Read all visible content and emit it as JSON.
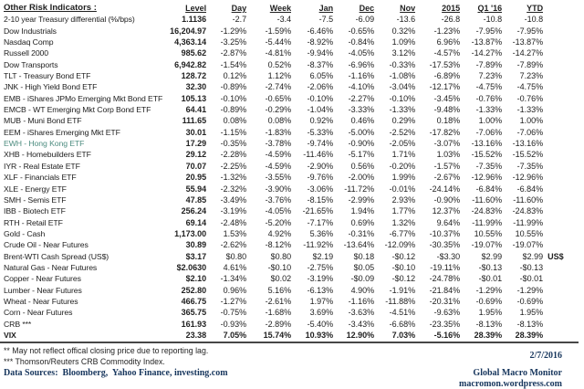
{
  "table": {
    "title": "Other Risk Indicators :",
    "columns": [
      "Level",
      "Day",
      "Week",
      "Jan",
      "Dec",
      "Nov",
      "2015",
      "Q1 '16",
      "YTD"
    ],
    "rows": [
      {
        "label": "2-10 year Treasury differential (%/bps)",
        "values": [
          "1.1136",
          "-2.7",
          "-3.4",
          "-7.5",
          "-6.09",
          "-13.6",
          "-26.8",
          "-10.8",
          "-10.8"
        ]
      },
      {
        "label": "Dow Industrials",
        "values": [
          "16,204.97",
          "-1.29%",
          "-1.59%",
          "-6.46%",
          "-0.65%",
          "0.32%",
          "-1.23%",
          "-7.95%",
          "-7.95%"
        ]
      },
      {
        "label": "Nasdaq Comp",
        "values": [
          "4,363.14",
          "-3.25%",
          "-5.44%",
          "-8.92%",
          "-0.84%",
          "1.09%",
          "6.96%",
          "-13.87%",
          "-13.87%"
        ]
      },
      {
        "label": "Russell 2000",
        "values": [
          "985.62",
          "-2.87%",
          "-4.81%",
          "-9.94%",
          "-4.05%",
          "3.12%",
          "-4.57%",
          "-14.27%",
          "-14.27%"
        ]
      },
      {
        "label": "Dow Transports",
        "values": [
          "6,942.82",
          "-1.54%",
          "0.52%",
          "-8.37%",
          "-6.96%",
          "-0.33%",
          "-17.53%",
          "-7.89%",
          "-7.89%"
        ]
      },
      {
        "label": "TLT - Treasury Bond ETF",
        "values": [
          "128.72",
          "0.12%",
          "1.12%",
          "6.05%",
          "-1.16%",
          "-1.08%",
          "-6.89%",
          "7.23%",
          "7.23%"
        ]
      },
      {
        "label": "JNK - High Yield Bond ETF",
        "values": [
          "32.30",
          "-0.89%",
          "-2.74%",
          "-2.06%",
          "-4.10%",
          "-3.04%",
          "-12.17%",
          "-4.75%",
          "-4.75%"
        ]
      },
      {
        "label": "EMB - iShares JPMo Emerging Mkt Bond ETF",
        "values": [
          "105.13",
          "-0.10%",
          "-0.65%",
          "-0.10%",
          "-2.27%",
          "-0.10%",
          "-3.45%",
          "-0.76%",
          "-0.76%"
        ]
      },
      {
        "label": "EMCB - WT Emerging Mkt Corp Bond ETF",
        "values": [
          "64.41",
          "-0.89%",
          "-0.29%",
          "-1.04%",
          "-3.33%",
          "-1.33%",
          "-9.48%",
          "-1.33%",
          "-1.33%"
        ]
      },
      {
        "label": "MUB - Muni Bond ETF",
        "values": [
          "111.65",
          "0.08%",
          "0.08%",
          "0.92%",
          "0.46%",
          "0.29%",
          "0.18%",
          "1.00%",
          "1.00%"
        ]
      },
      {
        "label": "EEM - iShares Emerging Mkt ETF",
        "values": [
          "30.01",
          "-1.15%",
          "-1.83%",
          "-5.33%",
          "-5.00%",
          "-2.52%",
          "-17.82%",
          "-7.06%",
          "-7.06%"
        ]
      },
      {
        "label": "EWH - Hong Kong ETF",
        "values": [
          "17.29",
          "-0.35%",
          "-3.78%",
          "-9.74%",
          "-0.90%",
          "-2.05%",
          "-3.07%",
          "-13.16%",
          "-13.16%"
        ],
        "label_color": "teal"
      },
      {
        "label": "XHB - Homebuilders ETF",
        "values": [
          "29.12",
          "-2.28%",
          "-4.59%",
          "-11.46%",
          "-5.17%",
          "1.71%",
          "1.03%",
          "-15.52%",
          "-15.52%"
        ]
      },
      {
        "label": "IYR - Real Estate ETF",
        "values": [
          "70.07",
          "-2.25%",
          "-4.59%",
          "-2.90%",
          "0.56%",
          "-0.20%",
          "-1.57%",
          "-7.35%",
          "-7.35%"
        ]
      },
      {
        "label": "XLF - Financials ETF",
        "values": [
          "20.95",
          "-1.32%",
          "-3.55%",
          "-9.76%",
          "-2.00%",
          "1.99%",
          "-2.67%",
          "-12.96%",
          "-12.96%"
        ]
      },
      {
        "label": "XLE - Energy ETF",
        "values": [
          "55.94",
          "-2.32%",
          "-3.90%",
          "-3.06%",
          "-11.72%",
          "-0.01%",
          "-24.14%",
          "-6.84%",
          "-6.84%"
        ]
      },
      {
        "label": "SMH - Semis ETF",
        "values": [
          "47.85",
          "-3.49%",
          "-3.76%",
          "-8.15%",
          "-2.99%",
          "2.93%",
          "-0.90%",
          "-11.60%",
          "-11.60%"
        ]
      },
      {
        "label": "IBB - Biotech ETF",
        "values": [
          "256.24",
          "-3.19%",
          "-4.05%",
          "-21.65%",
          "1.94%",
          "1.77%",
          "12.37%",
          "-24.83%",
          "-24.83%"
        ]
      },
      {
        "label": "RTH - Retail ETF",
        "values": [
          "69.14",
          "-2.48%",
          "-5.20%",
          "-7.17%",
          "0.69%",
          "1.32%",
          "9.64%",
          "-11.99%",
          "-11.99%"
        ]
      },
      {
        "label": "Gold - Cash",
        "values": [
          "1,173.00",
          "1.53%",
          "4.92%",
          "5.36%",
          "-0.31%",
          "-6.77%",
          "-10.37%",
          "10.55%",
          "10.55%"
        ]
      },
      {
        "label": "Crude Oil - Near Futures",
        "values": [
          "30.89",
          "-2.62%",
          "-8.12%",
          "-11.92%",
          "-13.64%",
          "-12.09%",
          "-30.35%",
          "-19.07%",
          "-19.07%"
        ]
      },
      {
        "label": "Brent-WTI Cash Spread (US$)",
        "values": [
          "$3.17",
          "$0.80",
          "$0.80",
          "$2.19",
          "$0.18",
          "-$0.12",
          "-$3.30",
          "$2.99",
          "$2.99"
        ],
        "note": "US$"
      },
      {
        "label": "Natural Gas - Near Futures",
        "values": [
          "$2.0630",
          "4.61%",
          "-$0.10",
          "-2.75%",
          "$0.05",
          "-$0.10",
          "-19.11%",
          "-$0.13",
          "-$0.13"
        ]
      },
      {
        "label": "Copper - Near Futures",
        "values": [
          "$2.10",
          "-1.34%",
          "$0.02",
          "-3.19%",
          "-$0.09",
          "-$0.12",
          "-24.78%",
          "-$0.01",
          "-$0.01"
        ]
      },
      {
        "label": "Lumber - Near Futures",
        "values": [
          "252.80",
          "0.96%",
          "5.16%",
          "-6.13%",
          "4.90%",
          "-1.91%",
          "-21.84%",
          "-1.29%",
          "-1.29%"
        ]
      },
      {
        "label": "Wheat - Near Futures",
        "values": [
          "466.75",
          "-1.27%",
          "-2.61%",
          "1.97%",
          "-1.16%",
          "-11.88%",
          "-20.31%",
          "-0.69%",
          "-0.69%"
        ]
      },
      {
        "label": "Corn - Near Futures",
        "values": [
          "365.75",
          "-0.75%",
          "-1.68%",
          "3.69%",
          "-3.63%",
          "-4.51%",
          "-9.63%",
          "1.95%",
          "1.95%"
        ]
      },
      {
        "label": "CRB ***",
        "values": [
          "161.93",
          "-0.93%",
          "-2.89%",
          "-5.40%",
          "-3.43%",
          "-6.68%",
          "-23.35%",
          "-8.13%",
          "-8.13%"
        ]
      },
      {
        "label": "VIX",
        "values": [
          "23.38",
          "7.05%",
          "15.74%",
          "10.93%",
          "12.90%",
          "7.03%",
          "-5.16%",
          "28.39%",
          "28.39%"
        ],
        "bold": true
      }
    ]
  },
  "footnotes": [
    "** May not reflect offical closing price due to reporting lag.",
    "*** Thomson/Reuters CRB Commodity Index."
  ],
  "data_sources": "Data Sources:  Bloomberg,  Yahoo Finance, investing.com",
  "footer_right": {
    "date": "2/7/2016",
    "brand": "Global Macro Monitor",
    "url": "macromon.wordpress.com"
  },
  "colors": {
    "body_text": "#212121",
    "footer_navy": "#17365d",
    "ewh_label_teal": "#4e8d80",
    "divider": "#474747"
  }
}
